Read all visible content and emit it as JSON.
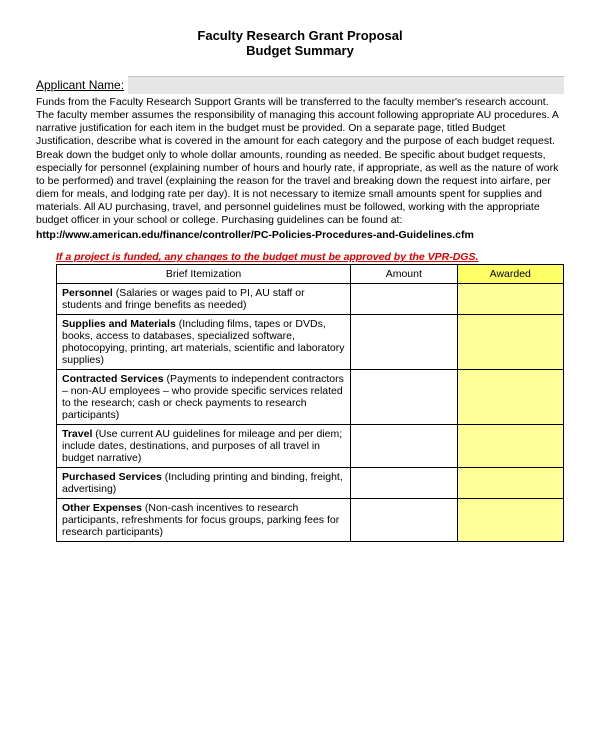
{
  "title_line1": "Faculty Research Grant Proposal",
  "title_line2": "Budget Summary",
  "applicant": {
    "label": "Applicant Name:",
    "value": ""
  },
  "body_text": "Funds from the Faculty Research Support Grants will be transferred to the faculty member's research account. The faculty member assumes the responsibility of managing this account following appropriate AU procedures. A narrative justification for each item in the budget must be provided. On a separate page, titled Budget Justification, describe what is covered in the amount for each category and the purpose of each budget request.  Break down the budget only to whole dollar amounts, rounding as needed. Be specific about budget requests, especially for personnel (explaining number of hours and hourly rate, if appropriate, as well as the nature of work to be performed) and travel (explaining the reason for the travel and breaking down the request into airfare, per diem for meals, and lodging rate per day).  It is not necessary to itemize small amounts spent for supplies and materials. All AU purchasing, travel, and personnel guidelines must be followed, working with the appropriate budget officer in your school or college. Purchasing guidelines can be found at:",
  "url": "http://www.american.edu/finance/controller/PC-Policies-Procedures-and-Guidelines.cfm",
  "notice": "If a project is funded, any changes to the budget must be approved by the VPR-DGS.",
  "table": {
    "headers": {
      "item": "Brief Itemization",
      "amount": "Amount",
      "awarded": "Awarded"
    },
    "header_bg_awarded": "#ffff66",
    "awarded_cell_bg": "#ffff99",
    "rows": [
      {
        "bold": "Personnel",
        "rest": " (Salaries or wages paid to PI, AU staff or students and fringe benefits as needed)",
        "amount": "",
        "awarded": ""
      },
      {
        "bold": "Supplies and Materials",
        "rest": " (Including films, tapes or DVDs, books, access to databases, specialized software, photocopying, printing, art materials, scientific and laboratory supplies)",
        "amount": "",
        "awarded": ""
      },
      {
        "bold": "Contracted Services",
        "rest": " (Payments to independent contractors – non-AU employees – who provide specific services related to the research; cash or check payments to research participants)",
        "amount": "",
        "awarded": ""
      },
      {
        "bold": "Travel",
        "rest": " (Use current AU guidelines for mileage and per diem; include dates, destinations, and purposes of all travel in budget narrative)",
        "amount": "",
        "awarded": ""
      },
      {
        "bold": "Purchased Services",
        "rest": " (Including printing and binding, freight, advertising)",
        "amount": "",
        "awarded": ""
      },
      {
        "bold": "Other Expenses",
        "rest": " (Non-cash incentives to research participants, refreshments for focus groups, parking fees for research participants)",
        "amount": "",
        "awarded": ""
      }
    ]
  }
}
